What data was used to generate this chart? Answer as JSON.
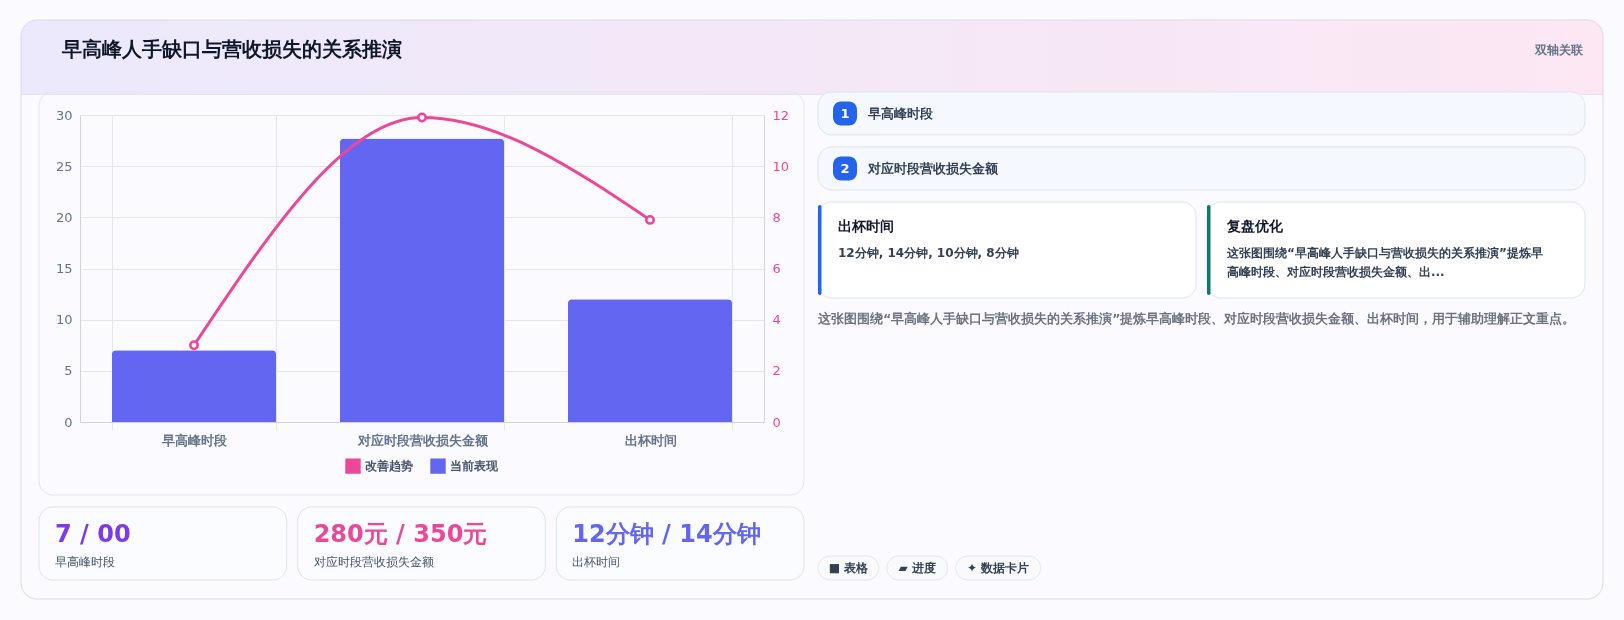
{
  "chart_data": [
    {
      "type": "bar",
      "title": "早高峰人手缺口与营收损失的关系推演",
      "categories": [
        "早高峰时段",
        "对应时段营收损失金额",
        "出杯时间"
      ],
      "series": [
        {
          "name": "改善趋势",
          "type": "line",
          "axis": "y2",
          "color": "#ec4899",
          "values": [
            3,
            11.9,
            7.9
          ]
        },
        {
          "name": "当前表现",
          "color": "#6366f1",
          "values": [
            7,
            27.7,
            12
          ]
        }
      ],
      "ylim": [
        0,
        30
      ],
      "yticks": [
        0,
        5,
        10,
        15,
        20,
        25,
        30
      ],
      "y2lim": [
        0,
        12
      ],
      "y2ticks": [
        0,
        2,
        4,
        6,
        8,
        10,
        12
      ],
      "grid": true,
      "legend": "bottom",
      "marker": "circle",
      "line_style": "solid"
    },
    {
      "type": "other",
      "annotations": [
        "7 / 00",
        "早高峰时段",
        "280元 / 350元",
        "对应时段营收损失金额",
        "12分钟 / 14分钟",
        "出杯时间"
      ],
      "colors": [
        "#7c3aed",
        "#ec4899",
        "#6366f1"
      ]
    },
    {
      "type": "other",
      "annotations": [
        "双轴关联",
        "1",
        "早高峰时段",
        "2",
        "对应时段营收损失金额",
        "出杯时间",
        "12分钟, 14分钟, 10分钟, 8分钟",
        "复盘优化",
        "这张图围绕“早高峰人手缺口与营收损失的关系推演”提炼早高峰时段、对应时段营收损失金额、出...",
        "这张图围绕“早高峰人手缺口与营收损失的关系推演”提炼早高峰时段、对应时段营收损失金额、出杯时间，用于辅助理解正文重点。",
        "■ 表格",
        "▰ 进度",
        "✦ 数据卡片"
      ]
    }
  ]
}
